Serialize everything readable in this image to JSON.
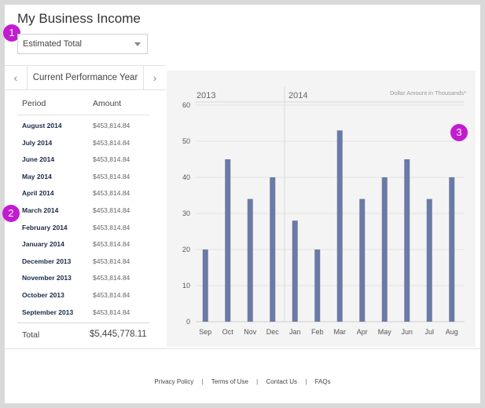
{
  "page": {
    "title": "My Business Income",
    "select_value": "Estimated Total",
    "badges": [
      "1",
      "2",
      "3"
    ]
  },
  "nav": {
    "prev": "‹",
    "label": "Current Performance Year",
    "next": "›"
  },
  "table": {
    "headers": [
      "Period",
      "Amount"
    ],
    "rows": [
      {
        "period": "August 2014",
        "amount": "$453,814.84"
      },
      {
        "period": "July 2014",
        "amount": "$453,814.84"
      },
      {
        "period": "June 2014",
        "amount": "$453,814.84"
      },
      {
        "period": "May 2014",
        "amount": "$453,814.84"
      },
      {
        "period": "April 2014",
        "amount": "$453,814.84"
      },
      {
        "period": "March 2014",
        "amount": "$453,814.84"
      },
      {
        "period": "February 2014",
        "amount": "$453,814.84"
      },
      {
        "period": "January 2014",
        "amount": "$453,814.84"
      },
      {
        "period": "December 2013",
        "amount": "$453,814.84"
      },
      {
        "period": "November 2013",
        "amount": "$453,814.84"
      },
      {
        "period": "October 2013",
        "amount": "$453,814.84"
      },
      {
        "period": "September 2013",
        "amount": "$453,814.84"
      }
    ],
    "total_label": "Total",
    "total_value": "$5,445,778.11"
  },
  "chart_data": {
    "type": "bar",
    "categories": [
      "Sep",
      "Oct",
      "Nov",
      "Dec",
      "Jan",
      "Feb",
      "Mar",
      "Apr",
      "May",
      "Jun",
      "Jul",
      "Aug"
    ],
    "values": [
      20,
      45,
      34,
      40,
      28,
      20,
      53,
      34,
      40,
      45,
      34,
      40
    ],
    "year_labels": [
      "2013",
      "2014"
    ],
    "unit_note": "Dollar Amount in Thousands*",
    "ylim": [
      0,
      60
    ],
    "yticks": [
      0,
      10,
      20,
      30,
      40,
      50,
      60
    ],
    "bar_color": "#6b7aa6",
    "grid": true
  },
  "footer": {
    "links": [
      "Privacy Policy",
      "Terms of Use",
      "Contact Us",
      "FAQs"
    ],
    "separator": "|"
  }
}
